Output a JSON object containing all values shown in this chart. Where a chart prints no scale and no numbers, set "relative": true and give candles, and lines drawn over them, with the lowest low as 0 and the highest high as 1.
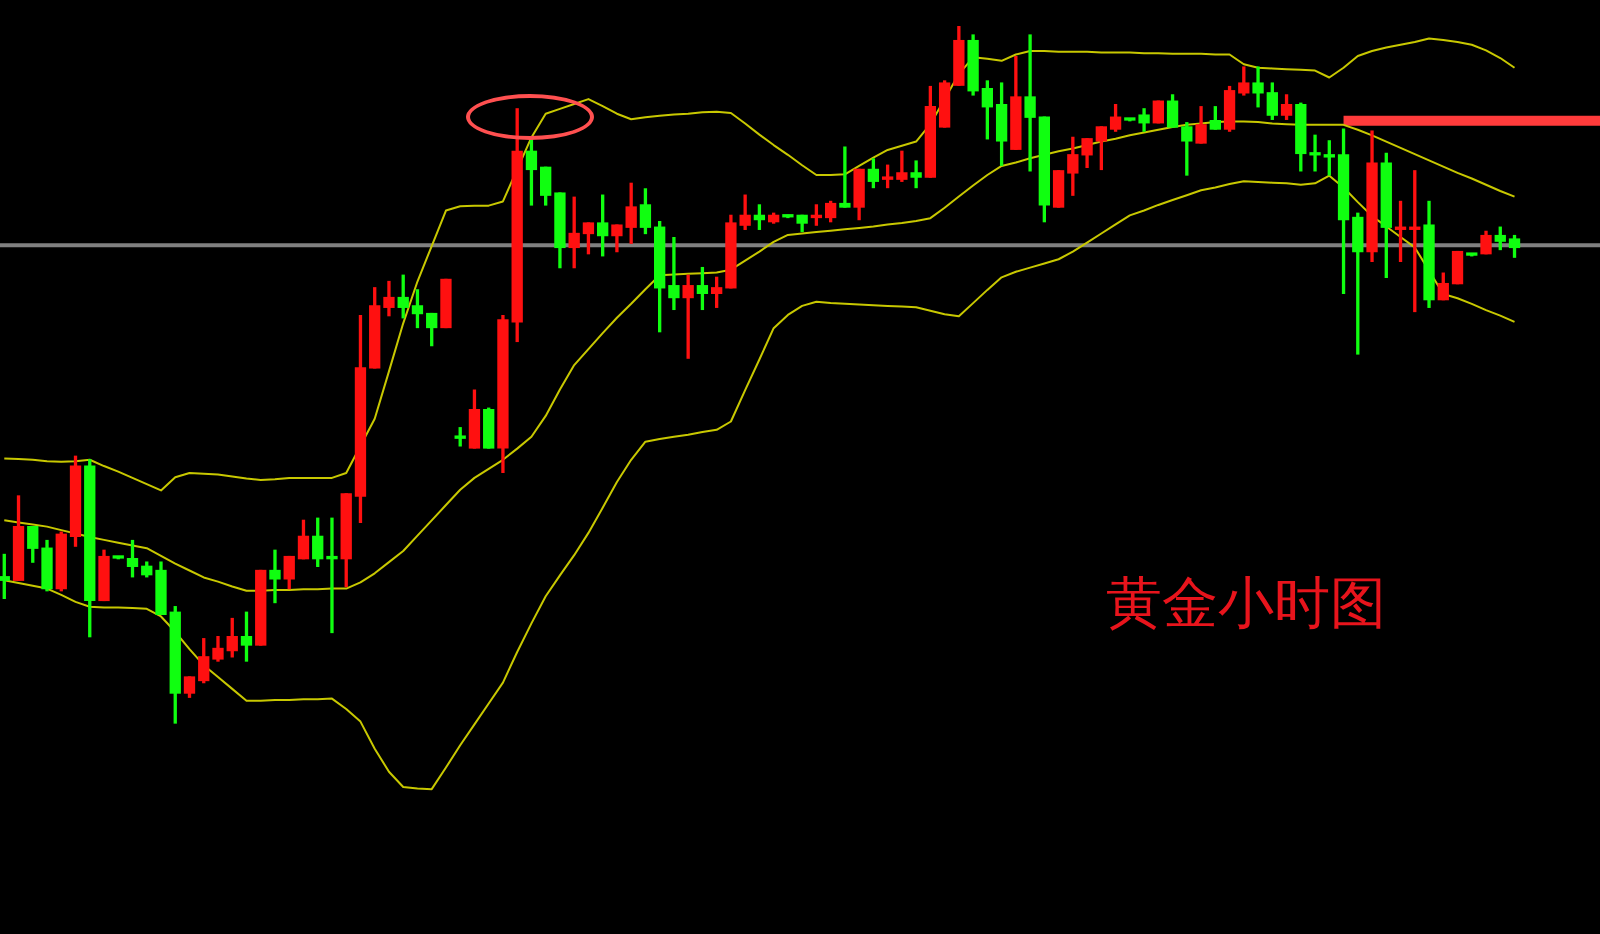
{
  "chart_data": {
    "type": "candlestick",
    "relative": true,
    "annotations": [
      "黄金小时图"
    ],
    "categories": [
      null,
      null,
      null,
      null,
      null,
      null,
      null,
      null,
      null,
      null,
      null,
      null,
      null,
      null,
      null,
      null,
      null,
      null,
      null,
      null,
      null,
      null,
      null,
      null,
      null,
      null,
      null,
      null,
      null,
      null,
      null,
      null,
      null,
      null,
      null,
      null,
      null,
      null,
      null,
      null,
      null,
      null,
      null,
      null,
      null,
      null,
      null,
      null,
      null,
      null,
      null,
      null,
      null,
      null,
      null,
      null,
      null,
      null,
      null,
      null,
      null,
      null,
      null,
      null,
      null,
      null,
      null,
      null,
      null,
      null,
      null,
      null,
      null,
      null,
      null,
      null,
      null,
      null,
      null,
      null,
      null,
      null,
      null,
      null,
      null,
      null,
      null,
      null,
      null,
      null,
      null,
      null,
      null,
      null,
      null,
      null,
      null,
      null,
      null,
      null,
      null,
      null,
      null,
      null,
      null,
      null,
      null,
      null,
      null,
      null,
      null,
      null,
      null
    ],
    "ohlc": [
      [
        0.21,
        0.242,
        0.179,
        0.205
      ],
      [
        0.205,
        0.326,
        0.205,
        0.282
      ],
      [
        0.282,
        0.282,
        0.231,
        0.251
      ],
      [
        0.251,
        0.262,
        0.19,
        0.193
      ],
      [
        0.193,
        0.274,
        0.19,
        0.271
      ],
      [
        0.268,
        0.383,
        0.254,
        0.369
      ],
      [
        0.369,
        0.378,
        0.124,
        0.176
      ],
      [
        0.176,
        0.248,
        0.176,
        0.239
      ],
      [
        0.239,
        0.239,
        0.236,
        0.237
      ],
      [
        0.236,
        0.262,
        0.21,
        0.225
      ],
      [
        0.225,
        0.231,
        0.21,
        0.213
      ],
      [
        0.219,
        0.231,
        0.156,
        0.156
      ],
      [
        0.159,
        0.167,
        0.0,
        0.043
      ],
      [
        0.043,
        0.066,
        0.037,
        0.066
      ],
      [
        0.061,
        0.121,
        0.058,
        0.095
      ],
      [
        0.092,
        0.124,
        0.089,
        0.107
      ],
      [
        0.104,
        0.15,
        0.095,
        0.124
      ],
      [
        0.124,
        0.159,
        0.089,
        0.112
      ],
      [
        0.112,
        0.219,
        0.112,
        0.219
      ],
      [
        0.219,
        0.248,
        0.173,
        0.207
      ],
      [
        0.207,
        0.239,
        0.193,
        0.239
      ],
      [
        0.236,
        0.291,
        0.236,
        0.268
      ],
      [
        0.268,
        0.294,
        0.225,
        0.236
      ],
      [
        0.239,
        0.294,
        0.13,
        0.236
      ],
      [
        0.236,
        0.329,
        0.196,
        0.329
      ],
      [
        0.326,
        0.585,
        0.288,
        0.51
      ],
      [
        0.51,
        0.625,
        0.51,
        0.599
      ],
      [
        0.597,
        0.634,
        0.585,
        0.611
      ],
      [
        0.611,
        0.643,
        0.582,
        0.597
      ],
      [
        0.599,
        0.622,
        0.568,
        0.588
      ],
      [
        0.588,
        0.588,
        0.542,
        0.568
      ],
      [
        0.568,
        0.637,
        0.568,
        0.637
      ],
      [
        0.412,
        0.424,
        0.398,
        0.409
      ],
      [
        0.395,
        0.478,
        0.395,
        0.45
      ],
      [
        0.45,
        0.452,
        0.395,
        0.395
      ],
      [
        0.395,
        0.585,
        0.36,
        0.579
      ],
      [
        0.576,
        0.882,
        0.548,
        0.821
      ],
      [
        0.821,
        0.841,
        0.744,
        0.795
      ],
      [
        0.798,
        0.798,
        0.744,
        0.758
      ],
      [
        0.761,
        0.761,
        0.654,
        0.683
      ],
      [
        0.683,
        0.755,
        0.654,
        0.703
      ],
      [
        0.703,
        0.718,
        0.674,
        0.718
      ],
      [
        0.718,
        0.758,
        0.671,
        0.7
      ],
      [
        0.7,
        0.715,
        0.677,
        0.715
      ],
      [
        0.712,
        0.775,
        0.689,
        0.741
      ],
      [
        0.744,
        0.767,
        0.703,
        0.712
      ],
      [
        0.712,
        0.72,
        0.562,
        0.625
      ],
      [
        0.628,
        0.697,
        0.594,
        0.611
      ],
      [
        0.611,
        0.643,
        0.524,
        0.628
      ],
      [
        0.628,
        0.654,
        0.594,
        0.617
      ],
      [
        0.617,
        0.64,
        0.597,
        0.625
      ],
      [
        0.625,
        0.729,
        0.625,
        0.718
      ],
      [
        0.715,
        0.758,
        0.709,
        0.729
      ],
      [
        0.729,
        0.744,
        0.709,
        0.723
      ],
      [
        0.72,
        0.732,
        0.718,
        0.729
      ],
      [
        0.729,
        0.729,
        0.726,
        0.727
      ],
      [
        0.729,
        0.729,
        0.706,
        0.718
      ],
      [
        0.726,
        0.744,
        0.715,
        0.729
      ],
      [
        0.726,
        0.749,
        0.72,
        0.746
      ],
      [
        0.746,
        0.827,
        0.741,
        0.741
      ],
      [
        0.741,
        0.795,
        0.723,
        0.795
      ],
      [
        0.795,
        0.81,
        0.769,
        0.778
      ],
      [
        0.781,
        0.801,
        0.769,
        0.784
      ],
      [
        0.781,
        0.821,
        0.778,
        0.79
      ],
      [
        0.79,
        0.807,
        0.769,
        0.784
      ],
      [
        0.784,
        0.914,
        0.784,
        0.885
      ],
      [
        0.856,
        0.922,
        0.856,
        0.919
      ],
      [
        0.916,
        1.0,
        0.916,
        0.98
      ],
      [
        0.98,
        0.988,
        0.902,
        0.908
      ],
      [
        0.911,
        0.922,
        0.839,
        0.885
      ],
      [
        0.888,
        0.919,
        0.801,
        0.836
      ],
      [
        0.824,
        0.957,
        0.824,
        0.899
      ],
      [
        0.899,
        0.988,
        0.793,
        0.87
      ],
      [
        0.87,
        0.87,
        0.72,
        0.744
      ],
      [
        0.741,
        0.793,
        0.741,
        0.793
      ],
      [
        0.79,
        0.841,
        0.758,
        0.816
      ],
      [
        0.816,
        0.839,
        0.798,
        0.839
      ],
      [
        0.836,
        0.856,
        0.795,
        0.856
      ],
      [
        0.853,
        0.888,
        0.85,
        0.87
      ],
      [
        0.867,
        0.867,
        0.865,
        0.866
      ],
      [
        0.873,
        0.882,
        0.85,
        0.862
      ],
      [
        0.862,
        0.893,
        0.862,
        0.893
      ],
      [
        0.893,
        0.902,
        0.856,
        0.856
      ],
      [
        0.856,
        0.862,
        0.787,
        0.836
      ],
      [
        0.833,
        0.885,
        0.833,
        0.859
      ],
      [
        0.865,
        0.885,
        0.853,
        0.853
      ],
      [
        0.853,
        0.914,
        0.85,
        0.908
      ],
      [
        0.905,
        0.942,
        0.902,
        0.919
      ],
      [
        0.919,
        0.942,
        0.885,
        0.905
      ],
      [
        0.905,
        0.919,
        0.867,
        0.873
      ],
      [
        0.873,
        0.902,
        0.867,
        0.888
      ],
      [
        0.888,
        0.89,
        0.793,
        0.818
      ],
      [
        0.818,
        0.844,
        0.793,
        0.816
      ],
      [
        0.816,
        0.836,
        0.787,
        0.813
      ],
      [
        0.816,
        0.853,
        0.617,
        0.723
      ],
      [
        0.726,
        0.732,
        0.53,
        0.677
      ],
      [
        0.677,
        0.85,
        0.663,
        0.804
      ],
      [
        0.804,
        0.818,
        0.64,
        0.712
      ],
      [
        0.709,
        0.749,
        0.663,
        0.712
      ],
      [
        0.709,
        0.793,
        0.591,
        0.712
      ],
      [
        0.715,
        0.749,
        0.597,
        0.608
      ],
      [
        0.608,
        0.646,
        0.608,
        0.631
      ],
      [
        0.631,
        0.677,
        0.631,
        0.677
      ],
      [
        0.674,
        0.674,
        0.671,
        0.672
      ],
      [
        0.674,
        0.706,
        0.674,
        0.7
      ],
      [
        0.7,
        0.712,
        0.68,
        0.692
      ],
      [
        0.695,
        0.7,
        0.669,
        0.683
      ],
      null,
      null,
      null,
      null,
      null,
      null
    ],
    "series": [
      {
        "type": "line",
        "color": "#c8c800",
        "values": [
          0.38,
          0.379,
          0.378,
          0.376,
          0.375,
          0.376,
          0.378,
          0.369,
          0.361,
          0.352,
          0.343,
          0.334,
          0.353,
          0.359,
          0.358,
          0.357,
          0.354,
          0.351,
          0.349,
          0.35,
          0.352,
          0.352,
          0.352,
          0.352,
          0.359,
          null,
          0.437,
          0.505,
          0.574,
          0.634,
          0.685,
          0.736,
          0.742,
          0.743,
          0.743,
          0.749,
          null,
          0.841,
          0.875,
          0.882,
          0.889,
          0.896,
          0.886,
          0.875,
          0.867,
          0.87,
          0.872,
          0.874,
          0.875,
          0.877,
          0.878,
          0.876,
          0.861,
          0.845,
          0.83,
          0.816,
          0.801,
          0.787,
          0.787,
          0.788,
          0.8,
          0.812,
          0.823,
          0.829,
          0.835,
          0.86,
          null,
          0.932,
          0.956,
          0.954,
          0.951,
          0.96,
          0.965,
          0.965,
          0.964,
          0.964,
          0.964,
          0.963,
          0.963,
          0.963,
          0.962,
          0.962,
          0.961,
          0.961,
          0.961,
          0.96,
          0.96,
          0.946,
          0.941,
          0.94,
          0.939,
          0.938,
          0.937,
          0.927,
          0.941,
          0.958,
          0.965,
          0.97,
          0.974,
          0.978,
          0.983,
          0.981,
          0.978,
          0.974,
          0.966,
          0.955,
          0.941,
          null,
          null,
          null,
          null,
          null,
          null
        ]
      },
      {
        "type": "line",
        "color": "#c8c800",
        "values": [
          0.291,
          0.288,
          0.285,
          0.282,
          0.277,
          0.272,
          0.267,
          0.263,
          0.259,
          0.255,
          0.251,
          0.24,
          0.229,
          0.219,
          0.209,
          0.203,
          0.196,
          0.19,
          0.19,
          0.191,
          0.191,
          0.192,
          0.192,
          0.193,
          0.193,
          0.202,
          0.215,
          0.231,
          0.247,
          0.269,
          0.291,
          0.313,
          0.335,
          0.352,
          0.365,
          0.378,
          0.394,
          0.411,
          0.441,
          0.479,
          0.514,
          0.537,
          0.56,
          0.582,
          0.602,
          0.623,
          0.643,
          0.644,
          0.645,
          0.646,
          0.647,
          0.651,
          0.664,
          0.677,
          0.691,
          0.701,
          0.703,
          0.705,
          0.707,
          0.709,
          0.711,
          0.713,
          0.716,
          0.718,
          0.721,
          0.725,
          0.74,
          0.756,
          0.772,
          0.787,
          0.8,
          0.805,
          0.811,
          0.816,
          0.821,
          0.825,
          0.83,
          0.835,
          0.839,
          0.844,
          0.848,
          0.852,
          0.856,
          0.859,
          0.861,
          0.863,
          0.864,
          0.864,
          0.863,
          0.861,
          0.86,
          0.859,
          0.859,
          0.859,
          0.859,
          0.852,
          0.844,
          0.835,
          0.826,
          0.817,
          0.808,
          0.799,
          0.79,
          0.782,
          0.773,
          0.764,
          0.756,
          null,
          null,
          null,
          null,
          null,
          null
        ]
      },
      {
        "type": "line",
        "color": "#c8c800",
        "values": [
          0.205,
          0.201,
          0.197,
          0.193,
          0.184,
          0.174,
          0.167,
          0.166,
          0.166,
          0.165,
          0.164,
          0.153,
          0.131,
          0.106,
          0.083,
          0.066,
          0.049,
          0.032,
          0.032,
          0.033,
          0.033,
          0.034,
          0.034,
          0.035,
          0.02,
          0.002,
          -0.037,
          -0.07,
          -0.092,
          -0.094,
          -0.095,
          -0.064,
          -0.032,
          -0.002,
          0.028,
          0.058,
          0.102,
          0.143,
          0.182,
          0.212,
          0.241,
          0.273,
          0.309,
          0.346,
          0.378,
          0.404,
          0.408,
          0.411,
          0.414,
          0.418,
          0.421,
          0.433,
          0.478,
          0.522,
          0.567,
          0.586,
          0.599,
          0.605,
          0.603,
          0.602,
          0.601,
          0.6,
          0.599,
          0.598,
          0.597,
          0.592,
          0.587,
          0.584,
          0.603,
          0.622,
          0.64,
          0.648,
          0.654,
          0.66,
          0.666,
          0.677,
          0.69,
          0.703,
          0.716,
          0.729,
          0.736,
          0.744,
          0.751,
          0.758,
          0.765,
          0.769,
          0.774,
          0.778,
          0.777,
          0.776,
          0.775,
          0.773,
          0.775,
          0.786,
          0.769,
          0.748,
          0.728,
          0.713,
          0.698,
          0.683,
          null,
          0.616,
          0.61,
          0.602,
          0.593,
          0.585,
          0.576,
          null,
          null,
          null,
          null,
          null,
          null
        ]
      },
      {
        "type": "line",
        "color": "#ff3b3b",
        "values": [
          null,
          null,
          null,
          null,
          null,
          null,
          null,
          null,
          null,
          null,
          null,
          null,
          null,
          null,
          null,
          null,
          null,
          null,
          null,
          null,
          null,
          null,
          null,
          null,
          null,
          null,
          null,
          null,
          null,
          null,
          null,
          null,
          null,
          null,
          null,
          null,
          null,
          null,
          null,
          null,
          null,
          null,
          null,
          null,
          null,
          null,
          null,
          null,
          null,
          null,
          null,
          null,
          null,
          null,
          null,
          null,
          null,
          null,
          null,
          null,
          null,
          null,
          null,
          null,
          null,
          null,
          null,
          null,
          null,
          null,
          null,
          null,
          null,
          null,
          null,
          null,
          null,
          null,
          null,
          null,
          null,
          null,
          null,
          null,
          null,
          null,
          null,
          null,
          null,
          null,
          null,
          null,
          null,
          null,
          0.865,
          0.865,
          0.865,
          0.865,
          0.865,
          0.865,
          0.865,
          0.865,
          0.865,
          0.865,
          0.865,
          0.865,
          0.865,
          0.865,
          0.865,
          0.865,
          0.865,
          0.865,
          0.865
        ]
      }
    ],
    "ref_lines": [
      {
        "axis": "y",
        "value": 0.686,
        "color": "#808080"
      }
    ]
  }
}
